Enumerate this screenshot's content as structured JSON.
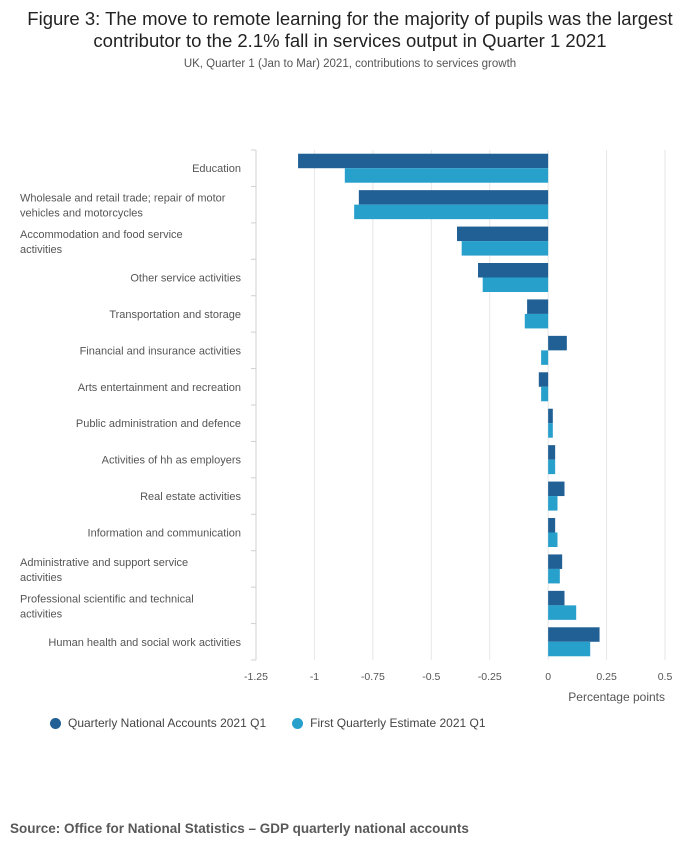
{
  "title": "Figure 3: The move to remote learning for the majority of pupils was the largest contributor to the 2.1% fall in services output in Quarter 1 2021",
  "subtitle": "UK, Quarter 1 (Jan to Mar) 2021, contributions to services growth",
  "source": "Source: Office for National Statistics – GDP quarterly national accounts",
  "chart_data": {
    "type": "bar",
    "orientation": "horizontal",
    "title": "Figure 3: The move to remote learning for the majority of pupils was the largest contributor to the 2.1% fall in services output in Quarter 1 2021",
    "xlabel": "Percentage points",
    "ylabel": "",
    "xlim": [
      -1.25,
      0.5
    ],
    "xticks": [
      -1.25,
      -1,
      -0.75,
      -0.5,
      -0.25,
      0,
      0.25,
      0.5
    ],
    "xtick_labels": [
      "-1.25",
      "-1",
      "-0.75",
      "-0.5",
      "-0.25",
      "0",
      "0.25",
      "0.5"
    ],
    "grid": true,
    "legend_position": "bottom-left",
    "categories": [
      "Education",
      "Wholesale and retail trade; repair of motor vehicles and motorcycles",
      "Accommodation and food service activities",
      "Other service activities",
      "Transportation and storage",
      "Financial and insurance activities",
      "Arts entertainment and recreation",
      "Public administration and defence",
      "Activities of hh as employers",
      "Real estate activities",
      "Information and communication",
      "Administrative and support service activities",
      "Professional scientific and technical activities",
      "Human health and social work activities"
    ],
    "category_label_lines": [
      [
        "Education"
      ],
      [
        "Wholesale and retail trade; repair of motor",
        "vehicles and motorcycles"
      ],
      [
        "Accommodation and food service",
        "activities"
      ],
      [
        "Other service activities"
      ],
      [
        "Transportation and storage"
      ],
      [
        "Financial and insurance activities"
      ],
      [
        "Arts entertainment and recreation"
      ],
      [
        "Public administration and defence"
      ],
      [
        "Activities of hh as employers"
      ],
      [
        "Real estate activities"
      ],
      [
        "Information and communication"
      ],
      [
        "Administrative and support service",
        "activities"
      ],
      [
        "Professional scientific and technical",
        "activities"
      ],
      [
        "Human health and social work activities"
      ]
    ],
    "series": [
      {
        "name": "Quarterly National Accounts 2021 Q1",
        "color": "#206095",
        "values": [
          -1.07,
          -0.81,
          -0.39,
          -0.3,
          -0.09,
          0.08,
          -0.04,
          0.02,
          0.03,
          0.07,
          0.03,
          0.06,
          0.07,
          0.22
        ]
      },
      {
        "name": "First Quarterly Estimate 2021 Q1",
        "color": "#27a0cc",
        "values": [
          -0.87,
          -0.83,
          -0.37,
          -0.28,
          -0.1,
          -0.03,
          -0.03,
          0.02,
          0.03,
          0.04,
          0.04,
          0.05,
          0.12,
          0.18
        ]
      }
    ]
  }
}
